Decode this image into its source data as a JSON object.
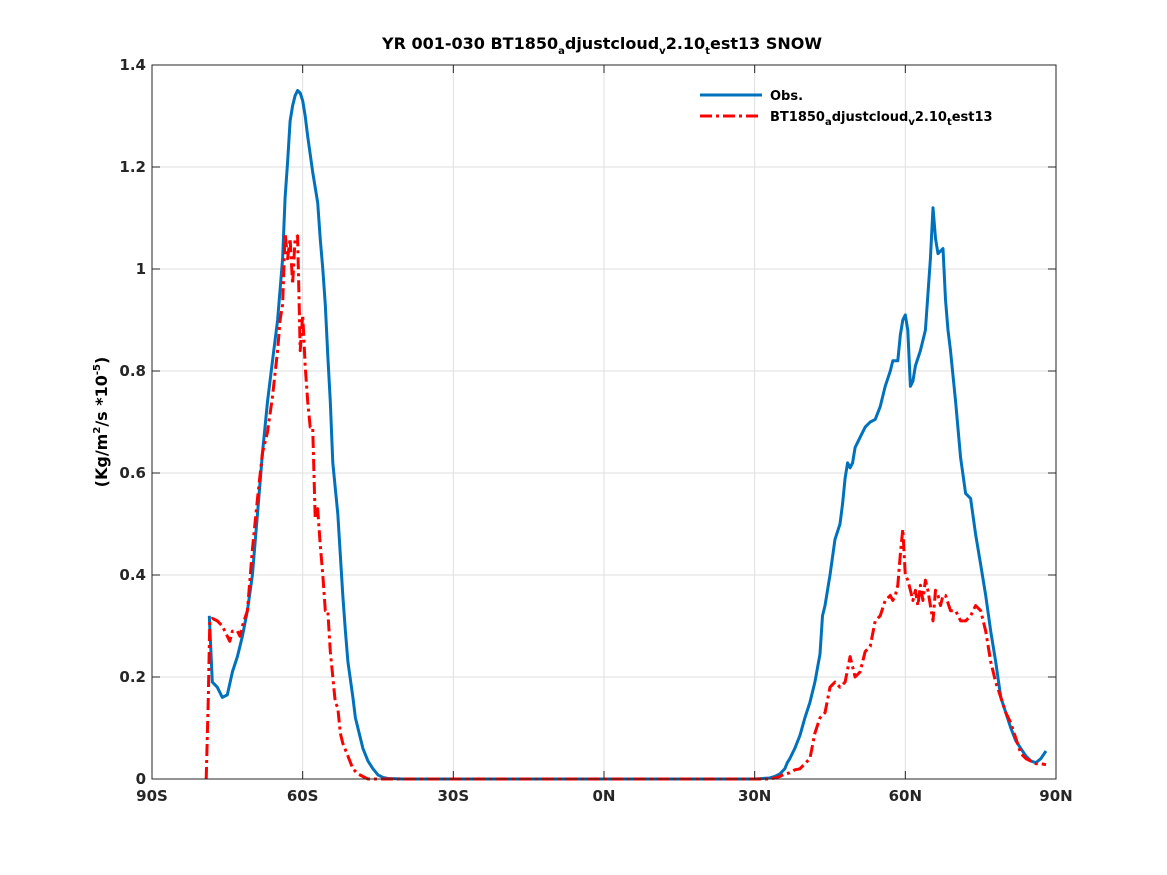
{
  "chart_data": {
    "type": "line",
    "title": {
      "main": "YR 001-030 BT1850",
      "sub1": "a",
      "mid1": "djustcloud",
      "sub2": "v",
      "mid2": "2.10",
      "sub3": "t",
      "end": "est13 SNOW"
    },
    "ylabel": {
      "pre": "(Kg/m",
      "sup1": "2",
      "mid": "/s *10",
      "sup2": "-5",
      "post": ")"
    },
    "xlim": [
      -90,
      90
    ],
    "ylim": [
      0,
      1.4
    ],
    "grid": true,
    "legend_position": "top-right",
    "x_ticks": [
      {
        "value": -90,
        "label": "90S"
      },
      {
        "value": -60,
        "label": "60S"
      },
      {
        "value": -30,
        "label": "30S"
      },
      {
        "value": 0,
        "label": "0N"
      },
      {
        "value": 30,
        "label": "30N"
      },
      {
        "value": 60,
        "label": "60N"
      },
      {
        "value": 90,
        "label": "90N"
      }
    ],
    "y_ticks": [
      {
        "value": 0,
        "label": "0"
      },
      {
        "value": 0.2,
        "label": "0.2"
      },
      {
        "value": 0.4,
        "label": "0.4"
      },
      {
        "value": 0.6,
        "label": "0.6"
      },
      {
        "value": 0.8,
        "label": "0.8"
      },
      {
        "value": 1.0,
        "label": "1"
      },
      {
        "value": 1.2,
        "label": "1.2"
      },
      {
        "value": 1.4,
        "label": "1.4"
      }
    ],
    "series": [
      {
        "name": "Obs.",
        "color": "#0072BD",
        "style": "solid",
        "points": [
          [
            -78.6,
            0.32
          ],
          [
            -78.0,
            0.19
          ],
          [
            -77.0,
            0.18
          ],
          [
            -76.0,
            0.16
          ],
          [
            -75.0,
            0.165
          ],
          [
            -74.0,
            0.21
          ],
          [
            -73.0,
            0.24
          ],
          [
            -72.0,
            0.28
          ],
          [
            -71.0,
            0.33
          ],
          [
            -70.0,
            0.4
          ],
          [
            -69.0,
            0.52
          ],
          [
            -68.0,
            0.64
          ],
          [
            -67.0,
            0.74
          ],
          [
            -66.0,
            0.82
          ],
          [
            -65.0,
            0.9
          ],
          [
            -64.0,
            1.02
          ],
          [
            -63.5,
            1.14
          ],
          [
            -63.0,
            1.21
          ],
          [
            -62.5,
            1.29
          ],
          [
            -62.0,
            1.32
          ],
          [
            -61.5,
            1.34
          ],
          [
            -61.0,
            1.35
          ],
          [
            -60.5,
            1.345
          ],
          [
            -60.0,
            1.33
          ],
          [
            -59.5,
            1.3
          ],
          [
            -59.0,
            1.26
          ],
          [
            -58.0,
            1.19
          ],
          [
            -57.0,
            1.13
          ],
          [
            -56.5,
            1.06
          ],
          [
            -56.0,
            1.0
          ],
          [
            -55.5,
            0.93
          ],
          [
            -55.0,
            0.83
          ],
          [
            -54.5,
            0.74
          ],
          [
            -54.0,
            0.62
          ],
          [
            -53.0,
            0.52
          ],
          [
            -52.5,
            0.44
          ],
          [
            -52.0,
            0.36
          ],
          [
            -51.5,
            0.29
          ],
          [
            -51.0,
            0.23
          ],
          [
            -50.0,
            0.16
          ],
          [
            -49.5,
            0.12
          ],
          [
            -49.0,
            0.1
          ],
          [
            -48.0,
            0.06
          ],
          [
            -47.0,
            0.035
          ],
          [
            -46.0,
            0.02
          ],
          [
            -45.0,
            0.008
          ],
          [
            -44.0,
            0.003
          ],
          [
            -43.0,
            0.001
          ],
          [
            -40.0,
            0.0
          ],
          [
            -30.0,
            0.0
          ],
          [
            0.0,
            0.0
          ],
          [
            30.0,
            0.0
          ],
          [
            33.0,
            0.002
          ],
          [
            34.0,
            0.005
          ],
          [
            35.0,
            0.01
          ],
          [
            36.0,
            0.02
          ],
          [
            36.5,
            0.032
          ],
          [
            37.0,
            0.04
          ],
          [
            38.0,
            0.06
          ],
          [
            39.0,
            0.085
          ],
          [
            40.0,
            0.12
          ],
          [
            41.0,
            0.15
          ],
          [
            42.0,
            0.19
          ],
          [
            43.0,
            0.245
          ],
          [
            43.5,
            0.32
          ],
          [
            44.0,
            0.34
          ],
          [
            45.0,
            0.4
          ],
          [
            46.0,
            0.47
          ],
          [
            47.0,
            0.5
          ],
          [
            47.5,
            0.54
          ],
          [
            48.0,
            0.59
          ],
          [
            48.5,
            0.62
          ],
          [
            49.0,
            0.61
          ],
          [
            49.5,
            0.62
          ],
          [
            50.0,
            0.65
          ],
          [
            51.0,
            0.67
          ],
          [
            52.0,
            0.69
          ],
          [
            53.0,
            0.7
          ],
          [
            54.0,
            0.705
          ],
          [
            55.0,
            0.73
          ],
          [
            56.0,
            0.77
          ],
          [
            57.0,
            0.8
          ],
          [
            57.5,
            0.82
          ],
          [
            58.0,
            0.82
          ],
          [
            58.5,
            0.82
          ],
          [
            59.0,
            0.87
          ],
          [
            59.5,
            0.9
          ],
          [
            60.0,
            0.91
          ],
          [
            60.5,
            0.88
          ],
          [
            61.0,
            0.77
          ],
          [
            61.5,
            0.78
          ],
          [
            62.0,
            0.81
          ],
          [
            63.0,
            0.84
          ],
          [
            64.0,
            0.88
          ],
          [
            64.5,
            0.95
          ],
          [
            65.0,
            1.02
          ],
          [
            65.5,
            1.12
          ],
          [
            66.0,
            1.06
          ],
          [
            66.5,
            1.03
          ],
          [
            67.0,
            1.035
          ],
          [
            67.5,
            1.04
          ],
          [
            68.0,
            0.94
          ],
          [
            68.5,
            0.88
          ],
          [
            69.0,
            0.84
          ],
          [
            70.0,
            0.74
          ],
          [
            71.0,
            0.63
          ],
          [
            72.0,
            0.56
          ],
          [
            73.0,
            0.55
          ],
          [
            74.0,
            0.48
          ],
          [
            75.0,
            0.42
          ],
          [
            76.0,
            0.36
          ],
          [
            77.0,
            0.29
          ],
          [
            78.0,
            0.23
          ],
          [
            79.0,
            0.16
          ],
          [
            80.0,
            0.13
          ],
          [
            81.0,
            0.1
          ],
          [
            82.0,
            0.075
          ],
          [
            83.0,
            0.06
          ],
          [
            84.0,
            0.045
          ],
          [
            85.0,
            0.035
          ],
          [
            86.0,
            0.032
          ],
          [
            87.0,
            0.04
          ],
          [
            88.0,
            0.055
          ]
        ]
      },
      {
        "name": "BT1850_adjustcloud_v2.10_test13",
        "color": "#FF0000",
        "style": "dashdot",
        "points": [
          [
            -79.2,
            0.0
          ],
          [
            -78.8,
            0.15
          ],
          [
            -78.5,
            0.31
          ],
          [
            -78.0,
            0.315
          ],
          [
            -77.0,
            0.31
          ],
          [
            -76.0,
            0.3
          ],
          [
            -75.0,
            0.28
          ],
          [
            -74.5,
            0.27
          ],
          [
            -74.0,
            0.29
          ],
          [
            -73.0,
            0.29
          ],
          [
            -72.5,
            0.28
          ],
          [
            -72.0,
            0.3
          ],
          [
            -71.0,
            0.33
          ],
          [
            -70.0,
            0.45
          ],
          [
            -69.0,
            0.55
          ],
          [
            -68.0,
            0.64
          ],
          [
            -67.0,
            0.68
          ],
          [
            -66.0,
            0.75
          ],
          [
            -65.0,
            0.84
          ],
          [
            -64.5,
            0.9
          ],
          [
            -64.0,
            0.93
          ],
          [
            -63.5,
            1.07
          ],
          [
            -63.0,
            1.02
          ],
          [
            -62.5,
            1.06
          ],
          [
            -62.0,
            0.97
          ],
          [
            -61.5,
            1.06
          ],
          [
            -61.0,
            1.065
          ],
          [
            -60.5,
            0.84
          ],
          [
            -60.0,
            0.91
          ],
          [
            -59.5,
            0.81
          ],
          [
            -59.0,
            0.74
          ],
          [
            -58.5,
            0.69
          ],
          [
            -58.0,
            0.69
          ],
          [
            -57.5,
            0.51
          ],
          [
            -57.0,
            0.53
          ],
          [
            -56.5,
            0.46
          ],
          [
            -56.0,
            0.4
          ],
          [
            -55.5,
            0.33
          ],
          [
            -55.0,
            0.33
          ],
          [
            -54.5,
            0.25
          ],
          [
            -54.0,
            0.2
          ],
          [
            -53.5,
            0.15
          ],
          [
            -53.0,
            0.14
          ],
          [
            -52.5,
            0.09
          ],
          [
            -52.0,
            0.07
          ],
          [
            -51.0,
            0.045
          ],
          [
            -50.0,
            0.02
          ],
          [
            -49.0,
            0.01
          ],
          [
            -48.0,
            0.005
          ],
          [
            -47.0,
            0.0
          ],
          [
            -30.0,
            0.0
          ],
          [
            0.0,
            0.0
          ],
          [
            30.0,
            0.0
          ],
          [
            33.0,
            0.0
          ],
          [
            34.0,
            0.002
          ],
          [
            35.0,
            0.005
          ],
          [
            36.0,
            0.01
          ],
          [
            37.0,
            0.012
          ],
          [
            38.0,
            0.018
          ],
          [
            39.0,
            0.02
          ],
          [
            40.0,
            0.03
          ],
          [
            41.0,
            0.04
          ],
          [
            42.0,
            0.09
          ],
          [
            43.0,
            0.12
          ],
          [
            44.0,
            0.13
          ],
          [
            45.0,
            0.18
          ],
          [
            46.0,
            0.19
          ],
          [
            47.0,
            0.18
          ],
          [
            48.0,
            0.19
          ],
          [
            49.0,
            0.24
          ],
          [
            50.0,
            0.2
          ],
          [
            51.0,
            0.21
          ],
          [
            52.0,
            0.25
          ],
          [
            53.0,
            0.26
          ],
          [
            54.0,
            0.31
          ],
          [
            55.0,
            0.32
          ],
          [
            56.0,
            0.35
          ],
          [
            57.0,
            0.36
          ],
          [
            57.5,
            0.35
          ],
          [
            58.0,
            0.36
          ],
          [
            58.5,
            0.38
          ],
          [
            59.0,
            0.44
          ],
          [
            59.5,
            0.49
          ],
          [
            60.0,
            0.4
          ],
          [
            60.5,
            0.39
          ],
          [
            61.0,
            0.37
          ],
          [
            61.5,
            0.35
          ],
          [
            62.0,
            0.37
          ],
          [
            62.5,
            0.34
          ],
          [
            63.0,
            0.38
          ],
          [
            63.5,
            0.35
          ],
          [
            64.0,
            0.39
          ],
          [
            64.5,
            0.37
          ],
          [
            65.0,
            0.34
          ],
          [
            65.5,
            0.31
          ],
          [
            66.0,
            0.37
          ],
          [
            66.5,
            0.36
          ],
          [
            67.0,
            0.34
          ],
          [
            67.5,
            0.36
          ],
          [
            68.0,
            0.36
          ],
          [
            69.0,
            0.33
          ],
          [
            70.0,
            0.33
          ],
          [
            71.0,
            0.31
          ],
          [
            72.0,
            0.31
          ],
          [
            73.0,
            0.32
          ],
          [
            74.0,
            0.34
          ],
          [
            75.0,
            0.33
          ],
          [
            76.0,
            0.29
          ],
          [
            77.0,
            0.23
          ],
          [
            78.0,
            0.19
          ],
          [
            79.0,
            0.16
          ],
          [
            80.0,
            0.13
          ],
          [
            81.0,
            0.11
          ],
          [
            82.0,
            0.08
          ],
          [
            83.0,
            0.05
          ],
          [
            84.0,
            0.04
          ],
          [
            85.0,
            0.035
          ],
          [
            86.0,
            0.03
          ],
          [
            87.0,
            0.03
          ],
          [
            88.0,
            0.028
          ]
        ]
      }
    ],
    "legend": {
      "entries": [
        {
          "text": "Obs."
        },
        {
          "pre": "BT1850",
          "sub1": "a",
          "mid1": "djustcloud",
          "sub2": "v",
          "mid2": "2.10",
          "sub3": "t",
          "end": "est13"
        }
      ]
    }
  }
}
